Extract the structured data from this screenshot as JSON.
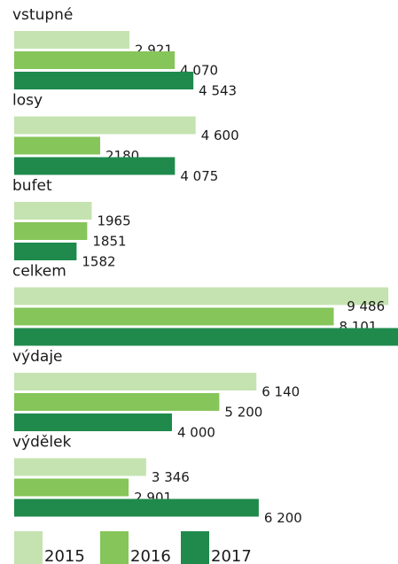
{
  "chart_data": {
    "type": "bar",
    "orientation": "horizontal",
    "categories": [
      "vstupné",
      "losy",
      "bufet",
      "celkem",
      "výdaje",
      "výdělek"
    ],
    "series": [
      {
        "name": "2015",
        "color": "#c5e3b0",
        "values": [
          2921,
          4600,
          1965,
          9486,
          6140,
          3346
        ],
        "value_labels": [
          "2 921",
          "4 600",
          "1965",
          "9 486",
          "6 140",
          "3 346"
        ]
      },
      {
        "name": "2016",
        "color": "#86c55a",
        "values": [
          4070,
          2180,
          1851,
          8101,
          5200,
          2901
        ],
        "value_labels": [
          "4 070",
          "2180",
          "1851",
          "8 101",
          "5 200",
          "2 901"
        ]
      },
      {
        "name": "2017",
        "color": "#1f8a4c",
        "values": [
          4543,
          4075,
          1582,
          10200,
          4000,
          6200
        ],
        "value_labels": [
          "4 543",
          "4 075",
          "1582",
          null,
          "4 000",
          "6 200"
        ]
      }
    ],
    "xlim": [
      0,
      9730
    ]
  }
}
